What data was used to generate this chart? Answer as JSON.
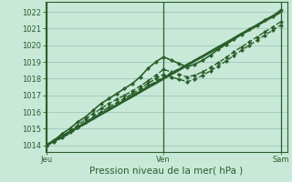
{
  "title": "",
  "xlabel": "Pression niveau de la mer( hPa )",
  "ylabel": "",
  "bg_color": "#c8e8d8",
  "plot_bg_color": "#c8e8d8",
  "grid_color": "#a0c8b8",
  "line_color": "#2a5f2a",
  "xtick_labels": [
    "Jeu",
    "Ven",
    "Sam"
  ],
  "xtick_positions": [
    0.0,
    0.5,
    1.0
  ],
  "ylim": [
    1013.6,
    1022.6
  ],
  "yticks": [
    1014,
    1015,
    1016,
    1017,
    1018,
    1019,
    1020,
    1021,
    1022
  ],
  "series": [
    {
      "x": [
        0.0,
        0.033,
        0.067,
        0.1,
        0.133,
        0.167,
        0.2,
        0.233,
        0.267,
        0.3,
        0.333,
        0.367,
        0.4,
        0.433,
        0.467,
        0.5,
        0.533,
        0.567,
        0.6,
        0.633,
        0.667,
        0.7,
        0.733,
        0.767,
        0.8,
        0.833,
        0.867,
        0.9,
        0.933,
        0.967,
        1.0
      ],
      "y": [
        1014.0,
        1014.27,
        1014.53,
        1014.8,
        1015.07,
        1015.33,
        1015.6,
        1015.87,
        1016.13,
        1016.4,
        1016.67,
        1016.93,
        1017.2,
        1017.47,
        1017.73,
        1018.0,
        1018.27,
        1018.53,
        1018.8,
        1019.07,
        1019.33,
        1019.6,
        1019.87,
        1020.13,
        1020.4,
        1020.67,
        1020.93,
        1021.2,
        1021.47,
        1021.73,
        1022.0
      ],
      "style": "solid",
      "marker": null,
      "lw": 2.0
    },
    {
      "x": [
        0.0,
        0.033,
        0.067,
        0.1,
        0.133,
        0.167,
        0.2,
        0.233,
        0.267,
        0.3,
        0.333,
        0.367,
        0.4,
        0.433,
        0.467,
        0.5,
        0.533,
        0.567,
        0.6,
        0.633,
        0.667,
        0.7,
        0.733,
        0.767,
        0.8,
        0.833,
        0.867,
        0.9,
        0.933,
        0.967,
        1.0
      ],
      "y": [
        1014.0,
        1014.3,
        1014.7,
        1015.0,
        1015.4,
        1015.7,
        1016.1,
        1016.5,
        1016.8,
        1017.1,
        1017.4,
        1017.7,
        1018.1,
        1018.6,
        1019.0,
        1019.3,
        1019.1,
        1018.9,
        1018.7,
        1018.85,
        1019.1,
        1019.4,
        1019.75,
        1020.05,
        1020.35,
        1020.65,
        1020.95,
        1021.2,
        1021.5,
        1021.75,
        1022.1
      ],
      "style": "solid",
      "marker": "D",
      "lw": 1.2
    },
    {
      "x": [
        0.0,
        0.033,
        0.067,
        0.1,
        0.133,
        0.167,
        0.2,
        0.233,
        0.267,
        0.3,
        0.333,
        0.367,
        0.4,
        0.433,
        0.467,
        0.5,
        0.533,
        0.567,
        0.6,
        0.633,
        0.667,
        0.7,
        0.733,
        0.767,
        0.8,
        0.833,
        0.867,
        0.9,
        0.933,
        0.967,
        1.0
      ],
      "y": [
        1014.0,
        1014.25,
        1014.55,
        1014.85,
        1015.2,
        1015.55,
        1015.9,
        1016.2,
        1016.5,
        1016.75,
        1017.0,
        1017.25,
        1017.55,
        1017.85,
        1018.2,
        1018.55,
        1018.4,
        1018.25,
        1018.1,
        1018.2,
        1018.4,
        1018.65,
        1018.95,
        1019.25,
        1019.6,
        1019.9,
        1020.2,
        1020.5,
        1020.8,
        1021.1,
        1021.4
      ],
      "style": "dashed",
      "marker": "D",
      "lw": 1.0
    },
    {
      "x": [
        0.0,
        0.033,
        0.067,
        0.1,
        0.133,
        0.167,
        0.2,
        0.233,
        0.267,
        0.3,
        0.333,
        0.367,
        0.4,
        0.433,
        0.467,
        0.5,
        0.533,
        0.567,
        0.6,
        0.633,
        0.667,
        0.7,
        0.733,
        0.767,
        0.8,
        0.833,
        0.867,
        0.9,
        0.933,
        0.967,
        1.0
      ],
      "y": [
        1014.0,
        1014.2,
        1014.45,
        1014.7,
        1015.0,
        1015.3,
        1015.6,
        1015.87,
        1016.17,
        1016.45,
        1016.72,
        1017.0,
        1017.27,
        1017.55,
        1017.82,
        1018.1,
        1018.35,
        1018.6,
        1018.85,
        1019.1,
        1019.35,
        1019.6,
        1019.87,
        1020.15,
        1020.42,
        1020.7,
        1020.97,
        1021.22,
        1021.47,
        1021.75,
        1022.0
      ],
      "style": "dashed",
      "marker": null,
      "lw": 1.0
    },
    {
      "x": [
        0.0,
        0.033,
        0.067,
        0.1,
        0.133,
        0.167,
        0.2,
        0.233,
        0.267,
        0.3,
        0.333,
        0.367,
        0.4,
        0.433,
        0.467,
        0.5,
        0.533,
        0.567,
        0.6,
        0.633,
        0.667,
        0.7,
        0.733,
        0.767,
        0.8,
        0.833,
        0.867,
        0.9,
        0.933,
        0.967,
        1.0
      ],
      "y": [
        1014.0,
        1014.22,
        1014.5,
        1014.8,
        1015.1,
        1015.4,
        1015.7,
        1016.0,
        1016.3,
        1016.55,
        1016.82,
        1017.1,
        1017.4,
        1017.7,
        1018.0,
        1018.25,
        1018.1,
        1017.95,
        1017.82,
        1017.95,
        1018.2,
        1018.45,
        1018.75,
        1019.05,
        1019.38,
        1019.7,
        1020.0,
        1020.3,
        1020.6,
        1020.9,
        1021.2
      ],
      "style": "dashed",
      "marker": "D",
      "lw": 1.0
    }
  ],
  "vlines": [
    0.0,
    0.5,
    1.0
  ],
  "tick_fontsize": 6,
  "label_fontsize": 7.5,
  "xlim": [
    -0.005,
    1.03
  ]
}
